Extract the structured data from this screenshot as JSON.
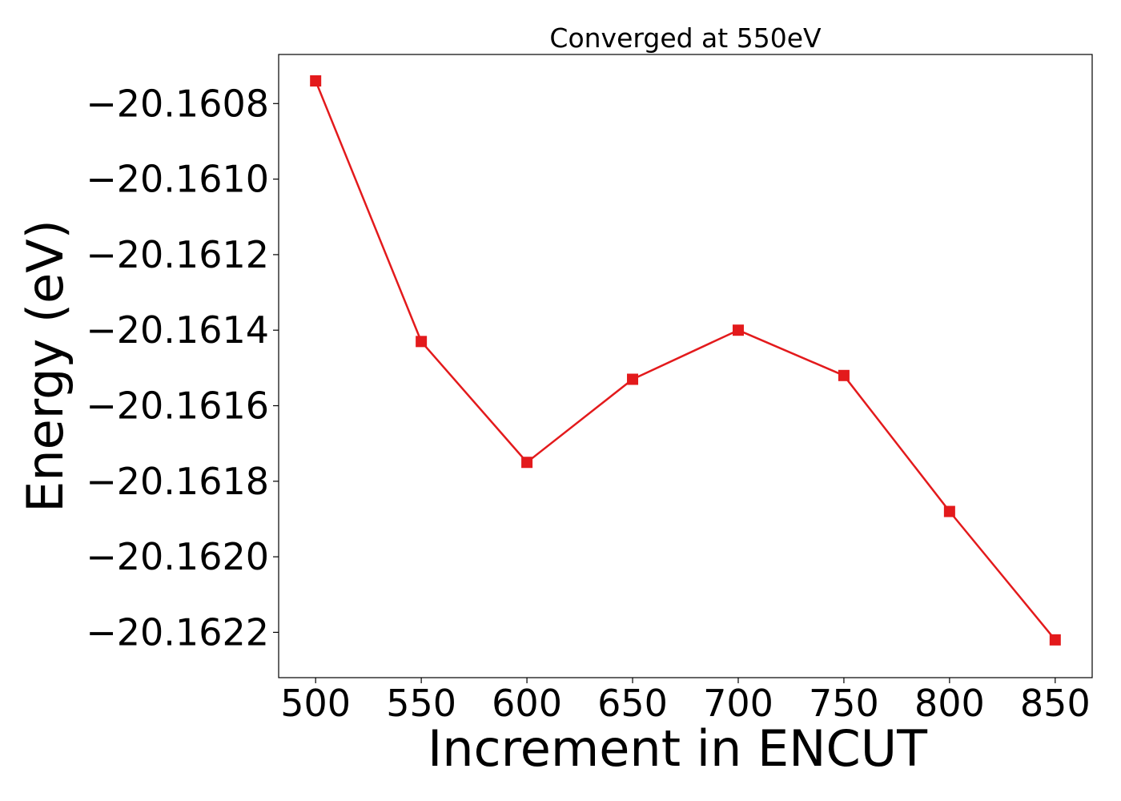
{
  "chart_data": {
    "type": "line",
    "title": "Converged at 550eV",
    "xlabel": "Increment in ENCUT",
    "ylabel": "Energy (eV)",
    "x": [
      500,
      550,
      600,
      650,
      700,
      750,
      800,
      850
    ],
    "series": [
      {
        "values": [
          -20.16074,
          -20.16143,
          -20.16175,
          -20.16153,
          -20.1614,
          -20.16152,
          -20.16188,
          -20.16222
        ],
        "color": "#e31a1c",
        "marker": "square"
      }
    ],
    "xticks": [
      500,
      550,
      600,
      650,
      700,
      750,
      800,
      850
    ],
    "xtick_labels": [
      "500",
      "550",
      "600",
      "650",
      "700",
      "750",
      "800",
      "850"
    ],
    "yticks": [
      -20.1608,
      -20.161,
      -20.1612,
      -20.1614,
      -20.1616,
      -20.1618,
      -20.162,
      -20.1622
    ],
    "ytick_labels": [
      "−20.1608",
      "−20.1610",
      "−20.1612",
      "−20.1614",
      "−20.1616",
      "−20.1618",
      "−20.1620",
      "−20.1622"
    ],
    "xlim": [
      482.5,
      867.5
    ],
    "ylim": [
      -20.16232,
      -20.16067
    ],
    "grid": false,
    "legend": false
  }
}
